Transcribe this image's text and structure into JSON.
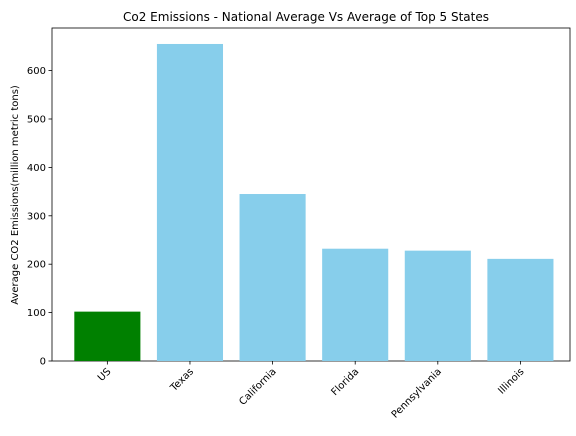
{
  "chart_data": {
    "type": "bar",
    "title": "Co2 Emissions - National Average Vs Average of Top 5 States",
    "xlabel": "",
    "ylabel": "Average CO2 Emissions(million metric tons)",
    "categories": [
      "US",
      "Texas",
      "California",
      "Florida",
      "Pennsylvania",
      "Illinois"
    ],
    "values": [
      102,
      655,
      345,
      232,
      228,
      211
    ],
    "bar_colors": [
      "#008000",
      "#87ceeb",
      "#87ceeb",
      "#87ceeb",
      "#87ceeb",
      "#87ceeb"
    ],
    "ylim": [
      0,
      688
    ],
    "yticks": [
      0,
      100,
      200,
      300,
      400,
      500,
      600
    ],
    "grid": false,
    "x_tick_rotation": -45
  }
}
